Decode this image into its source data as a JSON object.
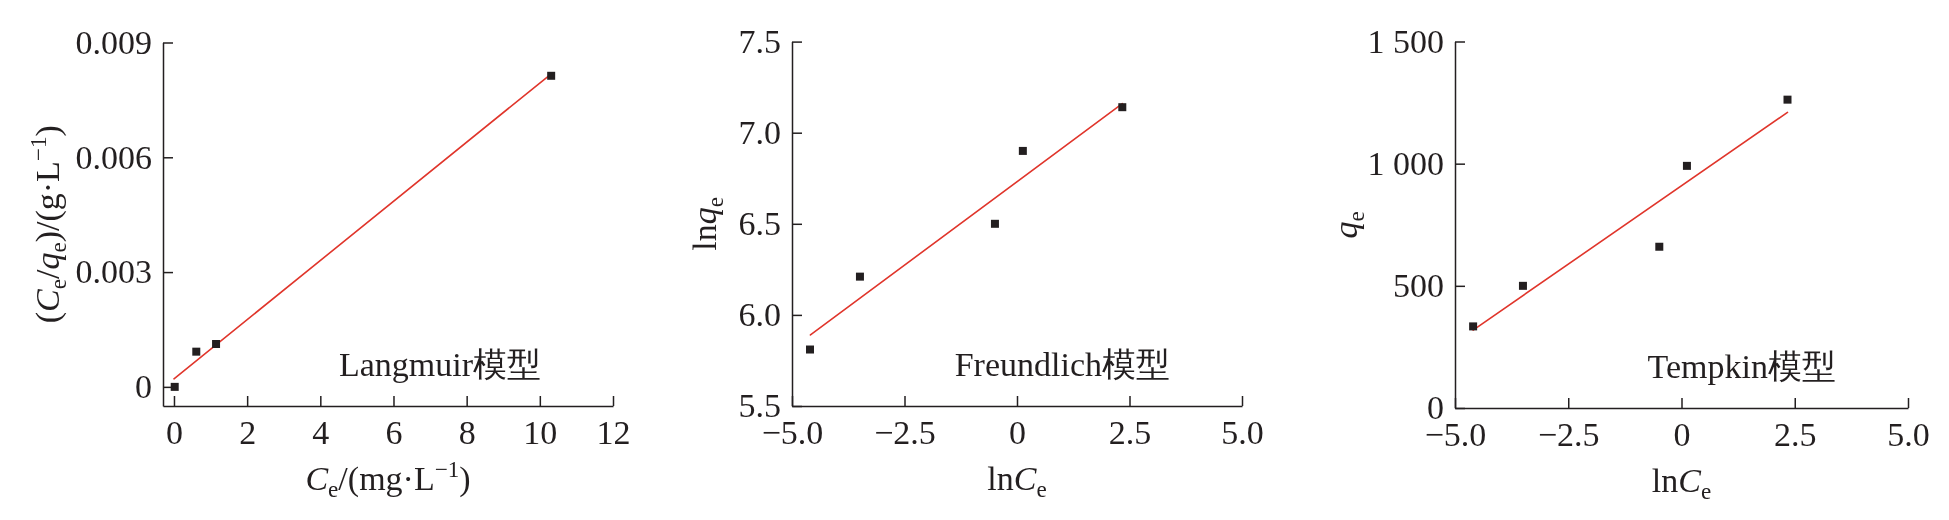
{
  "chart_data": [
    {
      "type": "scatter",
      "xlabel": "C$_{e}$/(mg·L$^{−1}$)",
      "ylabel": "(C$_{e}$/q$_{e}$)/(g·L$^{−1}$)",
      "annotations": [
        "Langmuir模型"
      ],
      "xlim": [
        -0.3,
        12
      ],
      "xticks": [
        0,
        2,
        4,
        6,
        8,
        10,
        12
      ],
      "ylim": [
        -0.0005,
        0.009
      ],
      "yticks": [
        0,
        0.003,
        0.006,
        0.009
      ],
      "series": [
        {
          "marker": "square",
          "color": "#231f20",
          "x": [
            0.02,
            0.61,
            1.15,
            10.31
          ],
          "values": [
            0,
            0.00092,
            0.00112,
            0.00813
          ]
        },
        {
          "type": "line",
          "color": "#e0352b",
          "x": [
            0,
            10.27
          ],
          "values": [
            0.00021,
            0.00815
          ]
        }
      ]
    },
    {
      "type": "scatter",
      "xlabel": "lnC$_{e}$",
      "ylabel": "lnq$_{e}$",
      "annotations": [
        "Freundlich模型"
      ],
      "xlim": [
        -5,
        5
      ],
      "xticks": [
        {
          "value": -5,
          "label": "−5.0"
        },
        {
          "value": -2.5,
          "label": "−2.5"
        },
        0,
        2.5,
        {
          "value": 5,
          "label": "5.0"
        }
      ],
      "ylim": [
        5.5,
        7.5
      ],
      "yticks": [
        5.5,
        {
          "value": 6,
          "label": "6.0"
        },
        6.5,
        {
          "value": 7,
          "label": "7.0"
        },
        7.5
      ],
      "series": [
        {
          "marker": "square",
          "color": "#231f20",
          "x": [
            -4.6,
            -3.49,
            -0.49,
            0.13,
            2.34
          ],
          "values": [
            5.81,
            6.21,
            6.5,
            6.9,
            7.14
          ]
        },
        {
          "type": "line",
          "color": "#e0352b",
          "x": [
            -4.59,
            2.34
          ],
          "values": [
            5.89,
            7.16
          ]
        }
      ]
    },
    {
      "type": "scatter",
      "xlabel": "lnC$_{e}$",
      "ylabel": "q$_{e}$",
      "annotations": [
        "Tempkin模型"
      ],
      "xlim": [
        -5,
        5
      ],
      "xticks": [
        {
          "value": -5,
          "label": "−5.0"
        },
        {
          "value": -2.5,
          "label": "−2.5"
        },
        0,
        2.5,
        {
          "value": 5,
          "label": "5.0"
        }
      ],
      "ylim": [
        0,
        1500
      ],
      "yticks": [
        0,
        500,
        {
          "value": 1000,
          "label": "1 000"
        },
        {
          "value": 1500,
          "label": "1 500"
        }
      ],
      "series": [
        {
          "marker": "square",
          "color": "#231f20",
          "x": [
            -4.6,
            -3.5,
            -0.49,
            0.12,
            2.34
          ],
          "values": [
            334,
            500,
            660,
            991,
            1262
          ]
        },
        {
          "type": "line",
          "color": "#e0352b",
          "x": [
            -4.6,
            2.34
          ],
          "values": [
            319,
            1210
          ]
        }
      ]
    }
  ]
}
